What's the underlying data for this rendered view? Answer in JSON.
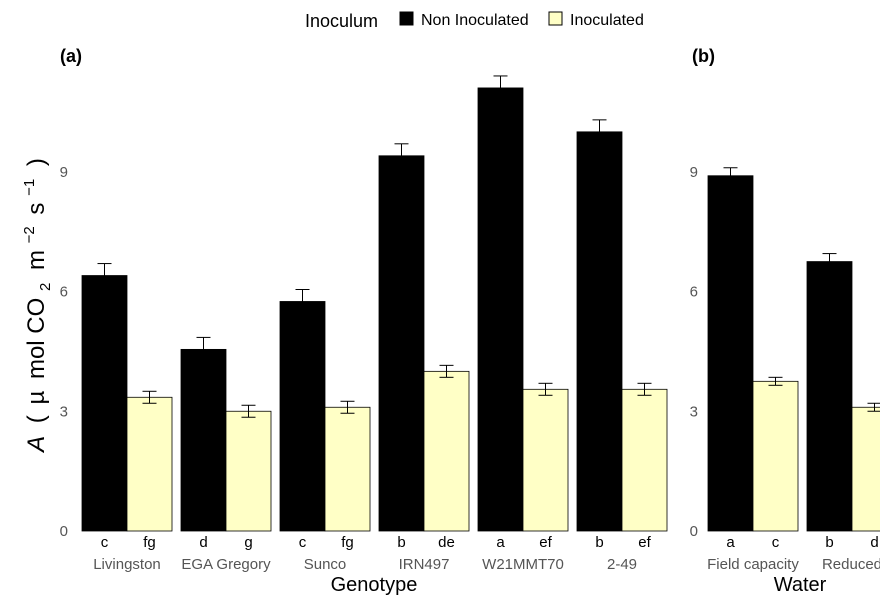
{
  "legend": {
    "title": "Inoculum",
    "entries": [
      {
        "label": "Non Inoculated",
        "color": "#000000"
      },
      {
        "label": "Inoculated",
        "color": "#ffffc6"
      }
    ]
  },
  "y_axis_label": {
    "italic": "A",
    "open": "(",
    "mu": "µ",
    "mol_co": "mol CO",
    "sub": "2",
    "m": "m",
    "sup_m": "−2",
    "s": "s",
    "sup_s": "−1",
    "close": ")"
  },
  "chart_data": [
    {
      "panel": "(a)",
      "type": "bar",
      "xlabel": "Genotype",
      "ylim": [
        0,
        12
      ],
      "yticks": [
        "0",
        "3",
        "6",
        "9"
      ],
      "categories": [
        "Livingston",
        "EGA Gregory",
        "Sunco",
        "IRN497",
        "W21MMT70",
        "2-49"
      ],
      "series": [
        {
          "name": "Non Inoculated",
          "values": [
            6.4,
            4.55,
            5.75,
            9.4,
            11.1,
            10.0
          ],
          "errors": [
            0.3,
            0.3,
            0.3,
            0.3,
            0.3,
            0.3
          ]
        },
        {
          "name": "Inoculated",
          "values": [
            3.35,
            3.0,
            3.1,
            4.0,
            3.55,
            3.55
          ],
          "errors": [
            0.15,
            0.15,
            0.15,
            0.15,
            0.15,
            0.15
          ]
        }
      ],
      "significance": [
        [
          "c",
          "fg"
        ],
        [
          "d",
          "g"
        ],
        [
          "c",
          "fg"
        ],
        [
          "b",
          "de"
        ],
        [
          "a",
          "ef"
        ],
        [
          "b",
          "ef"
        ]
      ]
    },
    {
      "panel": "(b)",
      "type": "bar",
      "xlabel": "Water",
      "ylim": [
        0,
        12
      ],
      "yticks": [
        "0",
        "3",
        "6",
        "9"
      ],
      "categories": [
        "Field capacity",
        "Reduced"
      ],
      "series": [
        {
          "name": "Non Inoculated",
          "values": [
            8.9,
            6.75
          ],
          "errors": [
            0.2,
            0.2
          ]
        },
        {
          "name": "Inoculated",
          "values": [
            3.75,
            3.1
          ],
          "errors": [
            0.1,
            0.1
          ]
        }
      ],
      "significance": [
        [
          "a",
          "c"
        ],
        [
          "b",
          "d"
        ]
      ]
    }
  ]
}
